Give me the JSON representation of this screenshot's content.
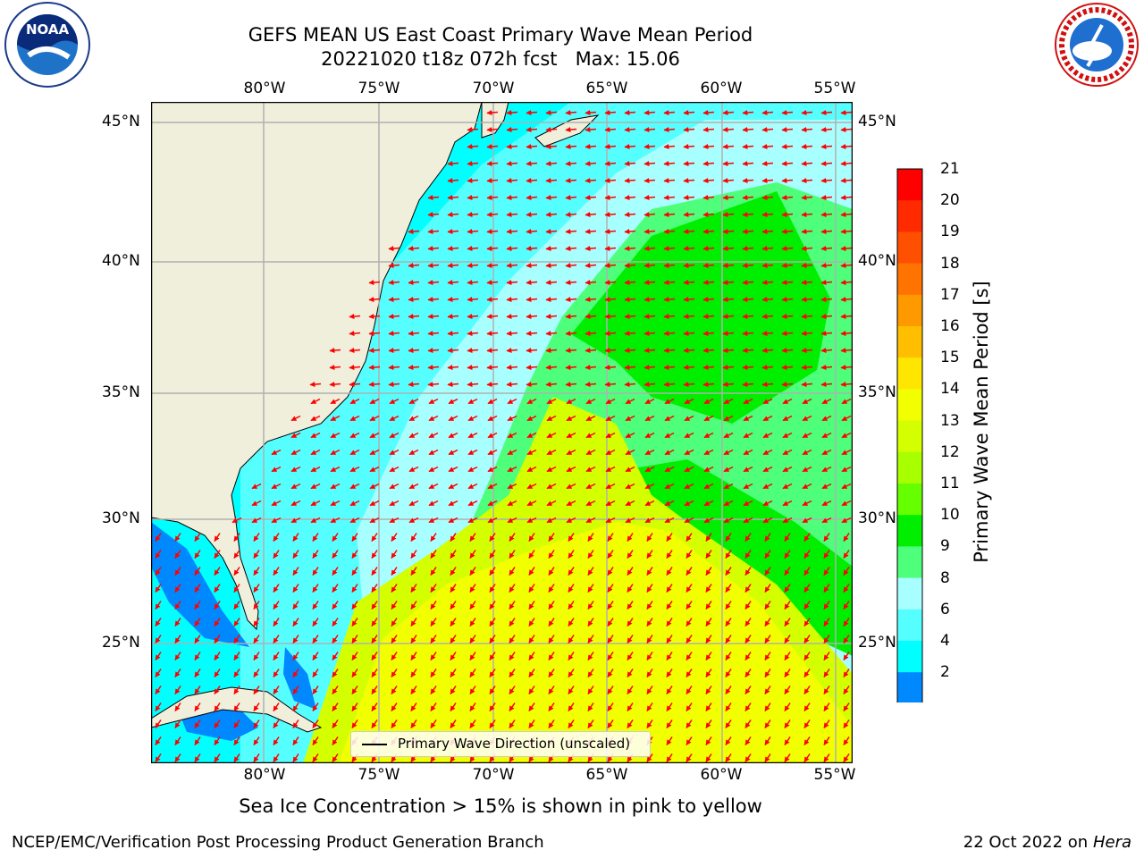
{
  "title": {
    "line1": "GEFS MEAN US East Coast Primary Wave Mean Period",
    "line2": "20221020 t18z 072h fcst   Max: 15.06"
  },
  "logos": {
    "left": "NOAA",
    "right": "National Weather Service"
  },
  "map": {
    "lon_labels": [
      "80°W",
      "75°W",
      "70°W",
      "65°W",
      "60°W",
      "55°W"
    ],
    "lat_labels": [
      "45°N",
      "40°N",
      "35°N",
      "30°N",
      "25°N"
    ],
    "legend": "Primary Wave Direction (unscaled)"
  },
  "colorbar": {
    "title": "Primary Wave Mean Period [s]",
    "ticks": [
      "21",
      "20",
      "19",
      "18",
      "17",
      "16",
      "15",
      "14",
      "13",
      "12",
      "11",
      "10",
      "9",
      "8",
      "6",
      "4",
      "2"
    ],
    "colors": [
      "#ff0000",
      "#ff2a00",
      "#ff4f00",
      "#ff7400",
      "#ff9900",
      "#ffbf00",
      "#ffe600",
      "#f2ff00",
      "#d4ff00",
      "#a8ff00",
      "#66ff00",
      "#00ee00",
      "#4dff7a",
      "#a8ffff",
      "#55ffff",
      "#00ffff",
      "#0088ff"
    ],
    "extend_color": "#0000ff"
  },
  "note": "Sea Ice Concentration > 15% is shown in pink to yellow",
  "footer": {
    "left": "NCEP/EMC/Verification Post Processing Product Generation Branch",
    "right_date": "22 Oct 2022 on ",
    "right_machine": "Hera"
  }
}
